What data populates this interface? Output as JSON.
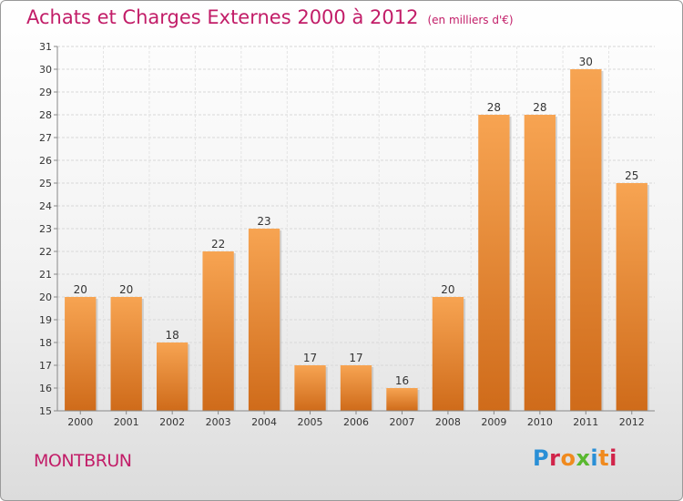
{
  "title": "Achats et Charges Externes 2000 à 2012",
  "subtitle": "(en milliers d'€)",
  "commune": "MONTBRUN",
  "logo_text": "Proxiti",
  "colors": {
    "bar_top": "#f7a452",
    "bar_bottom": "#cf6b1a",
    "title": "#c21d68"
  },
  "chart_data": {
    "type": "bar",
    "title": "Achats et Charges Externes 2000 à 2012",
    "subtitle": "(en milliers d'€)",
    "categories": [
      "2000",
      "2001",
      "2002",
      "2003",
      "2004",
      "2005",
      "2006",
      "2007",
      "2008",
      "2009",
      "2010",
      "2011",
      "2012"
    ],
    "values": [
      20,
      20,
      18,
      22,
      23,
      17,
      17,
      16,
      20,
      28,
      28,
      30,
      25
    ],
    "ylim": [
      15,
      31
    ],
    "yticks": [
      15,
      16,
      17,
      18,
      19,
      20,
      21,
      22,
      23,
      24,
      25,
      26,
      27,
      28,
      29,
      30,
      31
    ],
    "grid": true,
    "data_labels": true,
    "xlabel": "",
    "ylabel": ""
  }
}
